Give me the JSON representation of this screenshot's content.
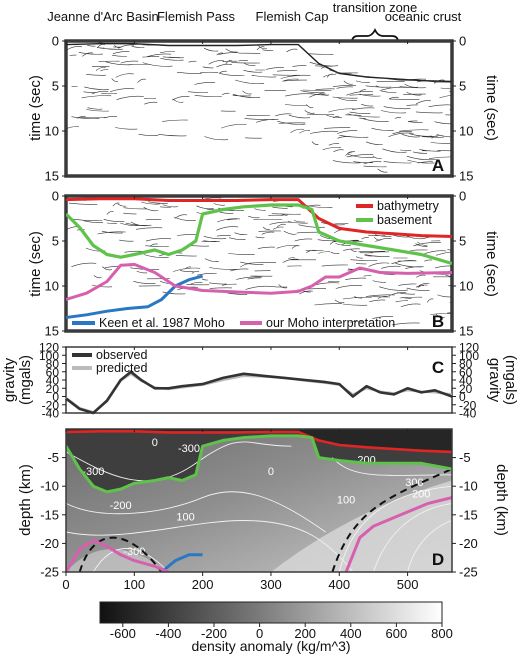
{
  "regions": [
    "Jeanne d'Arc Basin",
    "Flemish Pass",
    "Flemish Cap",
    "transition zone",
    "oceanic crust"
  ],
  "chart_data": [
    {
      "panel": "A",
      "type": "line",
      "ylabel": "time (sec)",
      "ylim": [
        15,
        0
      ],
      "yticks": [
        0,
        5,
        10,
        15
      ],
      "series": []
    },
    {
      "panel": "B",
      "type": "line",
      "ylabel": "time (sec)",
      "ylim": [
        15,
        0
      ],
      "yticks": [
        0,
        5,
        10,
        15
      ],
      "legend": [
        "bathymetry",
        "basement",
        "Keen et al. 1987 Moho",
        "our Moho interpretation"
      ],
      "colors": {
        "bathymetry": "#e02525",
        "basement": "#5fc24a",
        "Keen et al. 1987 Moho": "#2a77c4",
        "our Moho interpretation": "#d660ad"
      },
      "series": [
        {
          "name": "bathymetry",
          "x": [
            0,
            50,
            100,
            150,
            200,
            250,
            300,
            340,
            370,
            400,
            440,
            480,
            520,
            565
          ],
          "y": [
            0.4,
            0.3,
            0.3,
            0.5,
            0.5,
            0.5,
            0.4,
            0.4,
            2.5,
            3.6,
            4.0,
            4.2,
            4.4,
            4.5
          ]
        },
        {
          "name": "basement",
          "x": [
            0,
            20,
            40,
            60,
            80,
            100,
            130,
            150,
            170,
            190,
            200,
            230,
            260,
            300,
            340,
            360,
            370,
            400,
            440,
            480,
            520,
            565
          ],
          "y": [
            2.0,
            3.5,
            5.5,
            6.5,
            6.8,
            6.5,
            6.0,
            6.5,
            6.0,
            5.0,
            2.0,
            1.5,
            1.2,
            1.0,
            1.0,
            1.5,
            4.0,
            5.0,
            5.5,
            6.0,
            6.5,
            7.5
          ]
        },
        {
          "name": "Keen et al. 1987 Moho",
          "x": [
            0,
            30,
            60,
            90,
            120,
            140,
            160,
            180,
            200
          ],
          "y": [
            13.5,
            13.2,
            12.8,
            12.5,
            12.3,
            11.5,
            10.0,
            9.3,
            8.9
          ]
        },
        {
          "name": "our Moho interpretation",
          "x": [
            0,
            30,
            60,
            80,
            100,
            130,
            160,
            200,
            230,
            260,
            300,
            340,
            360,
            380,
            400,
            430,
            460,
            500,
            565
          ],
          "y": [
            11.5,
            10.8,
            9.5,
            7.7,
            7.6,
            8.5,
            10.0,
            10.5,
            10.6,
            10.7,
            10.8,
            10.6,
            10.0,
            9.0,
            9.0,
            8.0,
            8.5,
            8.6,
            8.5
          ]
        }
      ]
    },
    {
      "panel": "C",
      "type": "line",
      "ylabel": "gravity (mgals)",
      "ylim": [
        -40,
        120
      ],
      "yticks": [
        -40,
        -20,
        0,
        20,
        40,
        60,
        80,
        100,
        120
      ],
      "legend": [
        "observed",
        "predicted"
      ],
      "colors": {
        "observed": "#333333",
        "predicted": "#bbbbbb"
      },
      "series": [
        {
          "name": "observed",
          "x": [
            0,
            20,
            40,
            60,
            80,
            95,
            110,
            130,
            150,
            170,
            200,
            230,
            260,
            290,
            320,
            350,
            380,
            400,
            420,
            440,
            460,
            480,
            500,
            520,
            540,
            565
          ],
          "y": [
            -5,
            -30,
            -40,
            -10,
            40,
            60,
            40,
            20,
            20,
            25,
            30,
            45,
            55,
            50,
            45,
            40,
            35,
            30,
            0,
            25,
            10,
            5,
            20,
            10,
            15,
            0
          ]
        },
        {
          "name": "predicted",
          "x": [
            0,
            20,
            40,
            60,
            80,
            95,
            110,
            130,
            150,
            170,
            200,
            230,
            260,
            290,
            320,
            350,
            380,
            400,
            420,
            440,
            460,
            480,
            500,
            520,
            540,
            565
          ],
          "y": [
            -3,
            -28,
            -38,
            -12,
            38,
            55,
            38,
            22,
            18,
            22,
            28,
            40,
            50,
            48,
            45,
            38,
            33,
            28,
            5,
            20,
            12,
            8,
            15,
            12,
            10,
            5
          ]
        }
      ]
    },
    {
      "panel": "D",
      "type": "heatmap",
      "ylabel": "depth (km)",
      "xlim": [
        0,
        565
      ],
      "ylim": [
        -25,
        0
      ],
      "xticks": [
        0,
        100,
        200,
        300,
        400,
        500
      ],
      "yticks": [
        -5,
        -10,
        -15,
        -20,
        -25
      ],
      "contour_labels": [
        "0",
        "-300",
        "-300",
        "-200",
        "200",
        "100",
        "100",
        "0",
        "200",
        "300",
        "-300"
      ],
      "colorbar": {
        "label": "density anomaly (kg/m^3)",
        "ticks": [
          -600,
          -400,
          -200,
          0,
          200,
          400,
          600,
          800
        ],
        "range": [
          -700,
          800
        ]
      },
      "series": [
        {
          "name": "bathymetry",
          "x": [
            0,
            50,
            100,
            150,
            200,
            250,
            300,
            340,
            370,
            400,
            440,
            480,
            520,
            565
          ],
          "y": [
            -0.5,
            -0.4,
            -0.4,
            -0.6,
            -0.6,
            -0.6,
            -0.5,
            -0.5,
            -2.0,
            -2.8,
            -3.2,
            -3.5,
            -3.8,
            -4.0
          ]
        },
        {
          "name": "basement",
          "x": [
            0,
            20,
            40,
            60,
            80,
            100,
            130,
            150,
            170,
            190,
            200,
            230,
            260,
            300,
            340,
            360,
            370,
            400,
            440,
            480,
            520,
            565
          ],
          "y": [
            -3,
            -7,
            -10,
            -11,
            -10.5,
            -9.5,
            -9,
            -8.5,
            -9,
            -8,
            -3,
            -2,
            -1.5,
            -1.2,
            -1.2,
            -1.5,
            -5,
            -5.5,
            -6,
            -6,
            -6,
            -7
          ]
        },
        {
          "name": "Keen et al. 1987 Moho",
          "x": [
            140,
            160,
            180,
            200
          ],
          "y": [
            -25,
            -23,
            -22,
            -22
          ]
        },
        {
          "name": "our Moho interpretation",
          "x": [
            0,
            20,
            40,
            60,
            80,
            100,
            130,
            150
          ],
          "y": [
            -25,
            -21,
            -19.5,
            -20.5,
            -22,
            -23,
            -24,
            -25
          ]
        },
        {
          "name": "our Moho interpretation",
          "x": [
            410,
            430,
            450,
            470,
            490,
            510,
            530,
            565
          ],
          "y": [
            -25,
            -19,
            -17,
            -16,
            -15,
            -14,
            -13,
            -12
          ]
        }
      ]
    }
  ]
}
